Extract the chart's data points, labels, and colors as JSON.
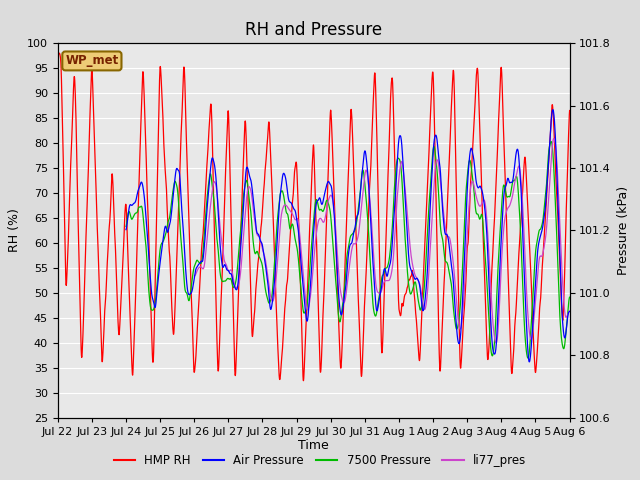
{
  "title": "RH and Pressure",
  "xlabel": "Time",
  "ylabel_left": "RH (%)",
  "ylabel_right": "Pressure (kPa)",
  "ylim_left": [
    25,
    100
  ],
  "ylim_right": [
    100.6,
    101.8
  ],
  "xtick_labels": [
    "Jul 22",
    "Jul 23",
    "Jul 24",
    "Jul 25",
    "Jul 26",
    "Jul 27",
    "Jul 28",
    "Jul 29",
    "Jul 30",
    "Jul 31",
    "Aug 1",
    "Aug 2",
    "Aug 3",
    "Aug 4",
    "Aug 5",
    "Aug 6"
  ],
  "colors": {
    "HMP_RH": "#ff0000",
    "Air_Pressure": "#0000ff",
    "Pressure_7500": "#00bb00",
    "li77_pres": "#cc44cc"
  },
  "legend_labels": [
    "HMP RH",
    "Air Pressure",
    "7500 Pressure",
    "li77_pres"
  ],
  "station_label": "WP_met",
  "background_color": "#dcdcdc",
  "plot_bg_color": "#e8e8e8",
  "title_fontsize": 12,
  "axis_fontsize": 9,
  "tick_fontsize": 8
}
